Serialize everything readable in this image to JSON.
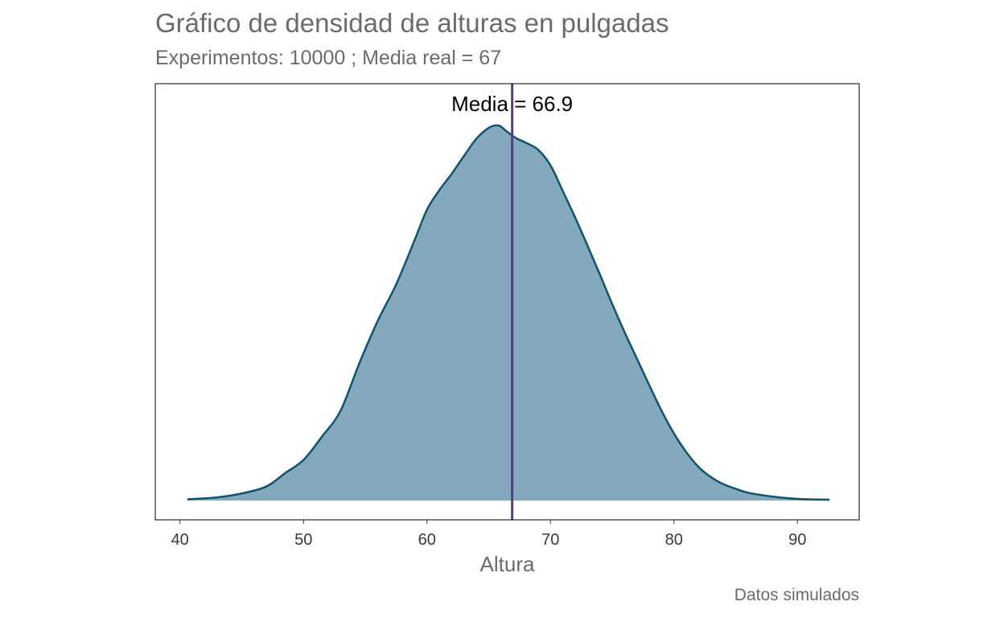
{
  "chart_data": {
    "type": "area",
    "title": "Gráfico de densidad de alturas en pulgadas",
    "subtitle": "Experimentos:  10000 ; Media real = 67",
    "caption": "Datos simulados",
    "xlabel": "Altura",
    "ylabel": "",
    "xlim": [
      38,
      95
    ],
    "ylim": [
      0,
      0.0485
    ],
    "x_ticks": [
      40,
      50,
      60,
      70,
      80,
      90
    ],
    "x_tick_labels": [
      "40",
      "50",
      "60",
      "70",
      "80",
      "90"
    ],
    "y_ticks_shown": false,
    "grid": false,
    "series": [
      {
        "x": [
          40.6,
          43,
          45,
          47,
          48.5,
          50,
          51.5,
          53,
          54.5,
          56,
          57.5,
          59,
          60,
          61,
          62,
          63,
          64,
          65,
          65.8,
          66.5,
          67.2,
          68,
          69,
          70,
          71,
          72,
          73,
          74,
          75,
          76,
          77,
          78,
          79,
          80,
          81,
          82,
          83,
          84,
          85,
          86,
          88,
          90,
          92.6
        ],
        "y": [
          0.00015,
          0.0004,
          0.0009,
          0.0018,
          0.0035,
          0.0052,
          0.0082,
          0.0115,
          0.0175,
          0.023,
          0.0277,
          0.0334,
          0.0373,
          0.0398,
          0.0419,
          0.0442,
          0.0464,
          0.0478,
          0.0481,
          0.0473,
          0.0465,
          0.0459,
          0.045,
          0.043,
          0.0397,
          0.0363,
          0.0327,
          0.029,
          0.0252,
          0.0216,
          0.0182,
          0.0148,
          0.0115,
          0.0086,
          0.0062,
          0.0043,
          0.003,
          0.0021,
          0.0015,
          0.001,
          0.0005,
          0.0002,
          0.0001
        ]
      }
    ],
    "mean_line": {
      "x": 66.9,
      "label": "Media =  66.9"
    },
    "colors": {
      "fill": "#84a9bc",
      "line": "#0f5371",
      "mean_line": "#5b3b86",
      "frame": "#000000"
    }
  }
}
